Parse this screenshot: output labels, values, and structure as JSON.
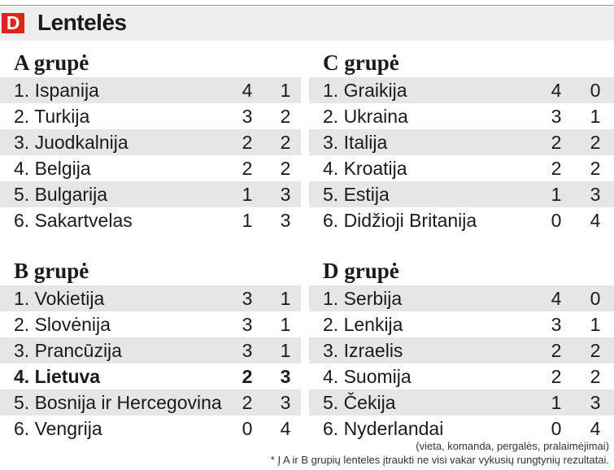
{
  "header": {
    "logo_letter": "D",
    "title": "Lentelės"
  },
  "groups": [
    {
      "title": "A grupė",
      "rows": [
        {
          "team": "1. Ispanija",
          "w": "4",
          "l": "1"
        },
        {
          "team": "2. Turkija",
          "w": "3",
          "l": "2"
        },
        {
          "team": "3. Juodkalnija",
          "w": "2",
          "l": "2"
        },
        {
          "team": "4. Belgija",
          "w": "2",
          "l": "2"
        },
        {
          "team": "5. Bulgarija",
          "w": "1",
          "l": "3"
        },
        {
          "team": "6. Sakartvelas",
          "w": "1",
          "l": "3"
        }
      ]
    },
    {
      "title": "B grupė",
      "rows": [
        {
          "team": "1. Vokietija",
          "w": "3",
          "l": "1"
        },
        {
          "team": "2. Slovėnija",
          "w": "3",
          "l": "1"
        },
        {
          "team": "3. Prancūzija",
          "w": "3",
          "l": "1"
        },
        {
          "team": "4. Lietuva",
          "w": "2",
          "l": "3"
        },
        {
          "team": "5. Bosnija ir Hercegovina",
          "w": "2",
          "l": "3"
        },
        {
          "team": "6. Vengrija",
          "w": "0",
          "l": "4"
        }
      ]
    },
    {
      "title": "C grupė",
      "rows": [
        {
          "team": "1. Graikija",
          "w": "4",
          "l": "0"
        },
        {
          "team": "2. Ukraina",
          "w": "3",
          "l": "1"
        },
        {
          "team": "3. Italija",
          "w": "2",
          "l": "2"
        },
        {
          "team": "4. Kroatija",
          "w": "2",
          "l": "2"
        },
        {
          "team": "5. Estija",
          "w": "1",
          "l": "3"
        },
        {
          "team": "6. Didžioji Britanija",
          "w": "0",
          "l": "4"
        }
      ]
    },
    {
      "title": "D grupė",
      "rows": [
        {
          "team": "1. Serbija",
          "w": "4",
          "l": "0"
        },
        {
          "team": "2. Lenkija",
          "w": "3",
          "l": "1"
        },
        {
          "team": "3. Izraelis",
          "w": "2",
          "l": "2"
        },
        {
          "team": "4. Suomija",
          "w": "2",
          "l": "2"
        },
        {
          "team": "5. Čekija",
          "w": "1",
          "l": "3"
        },
        {
          "team": "6. Nyderlandai",
          "w": "0",
          "l": "4"
        }
      ]
    }
  ],
  "footnote": {
    "legend": "(vieta, komanda, pergalės, pralaimėjimai)",
    "note": "* Į A ir B grupių lenteles įtraukti ne visi vakar vykusių rungtynių rezultatai."
  },
  "colors": {
    "stripe": "#e6e6e6",
    "header_bg": "#eeeeee",
    "logo": "#e2231a"
  }
}
